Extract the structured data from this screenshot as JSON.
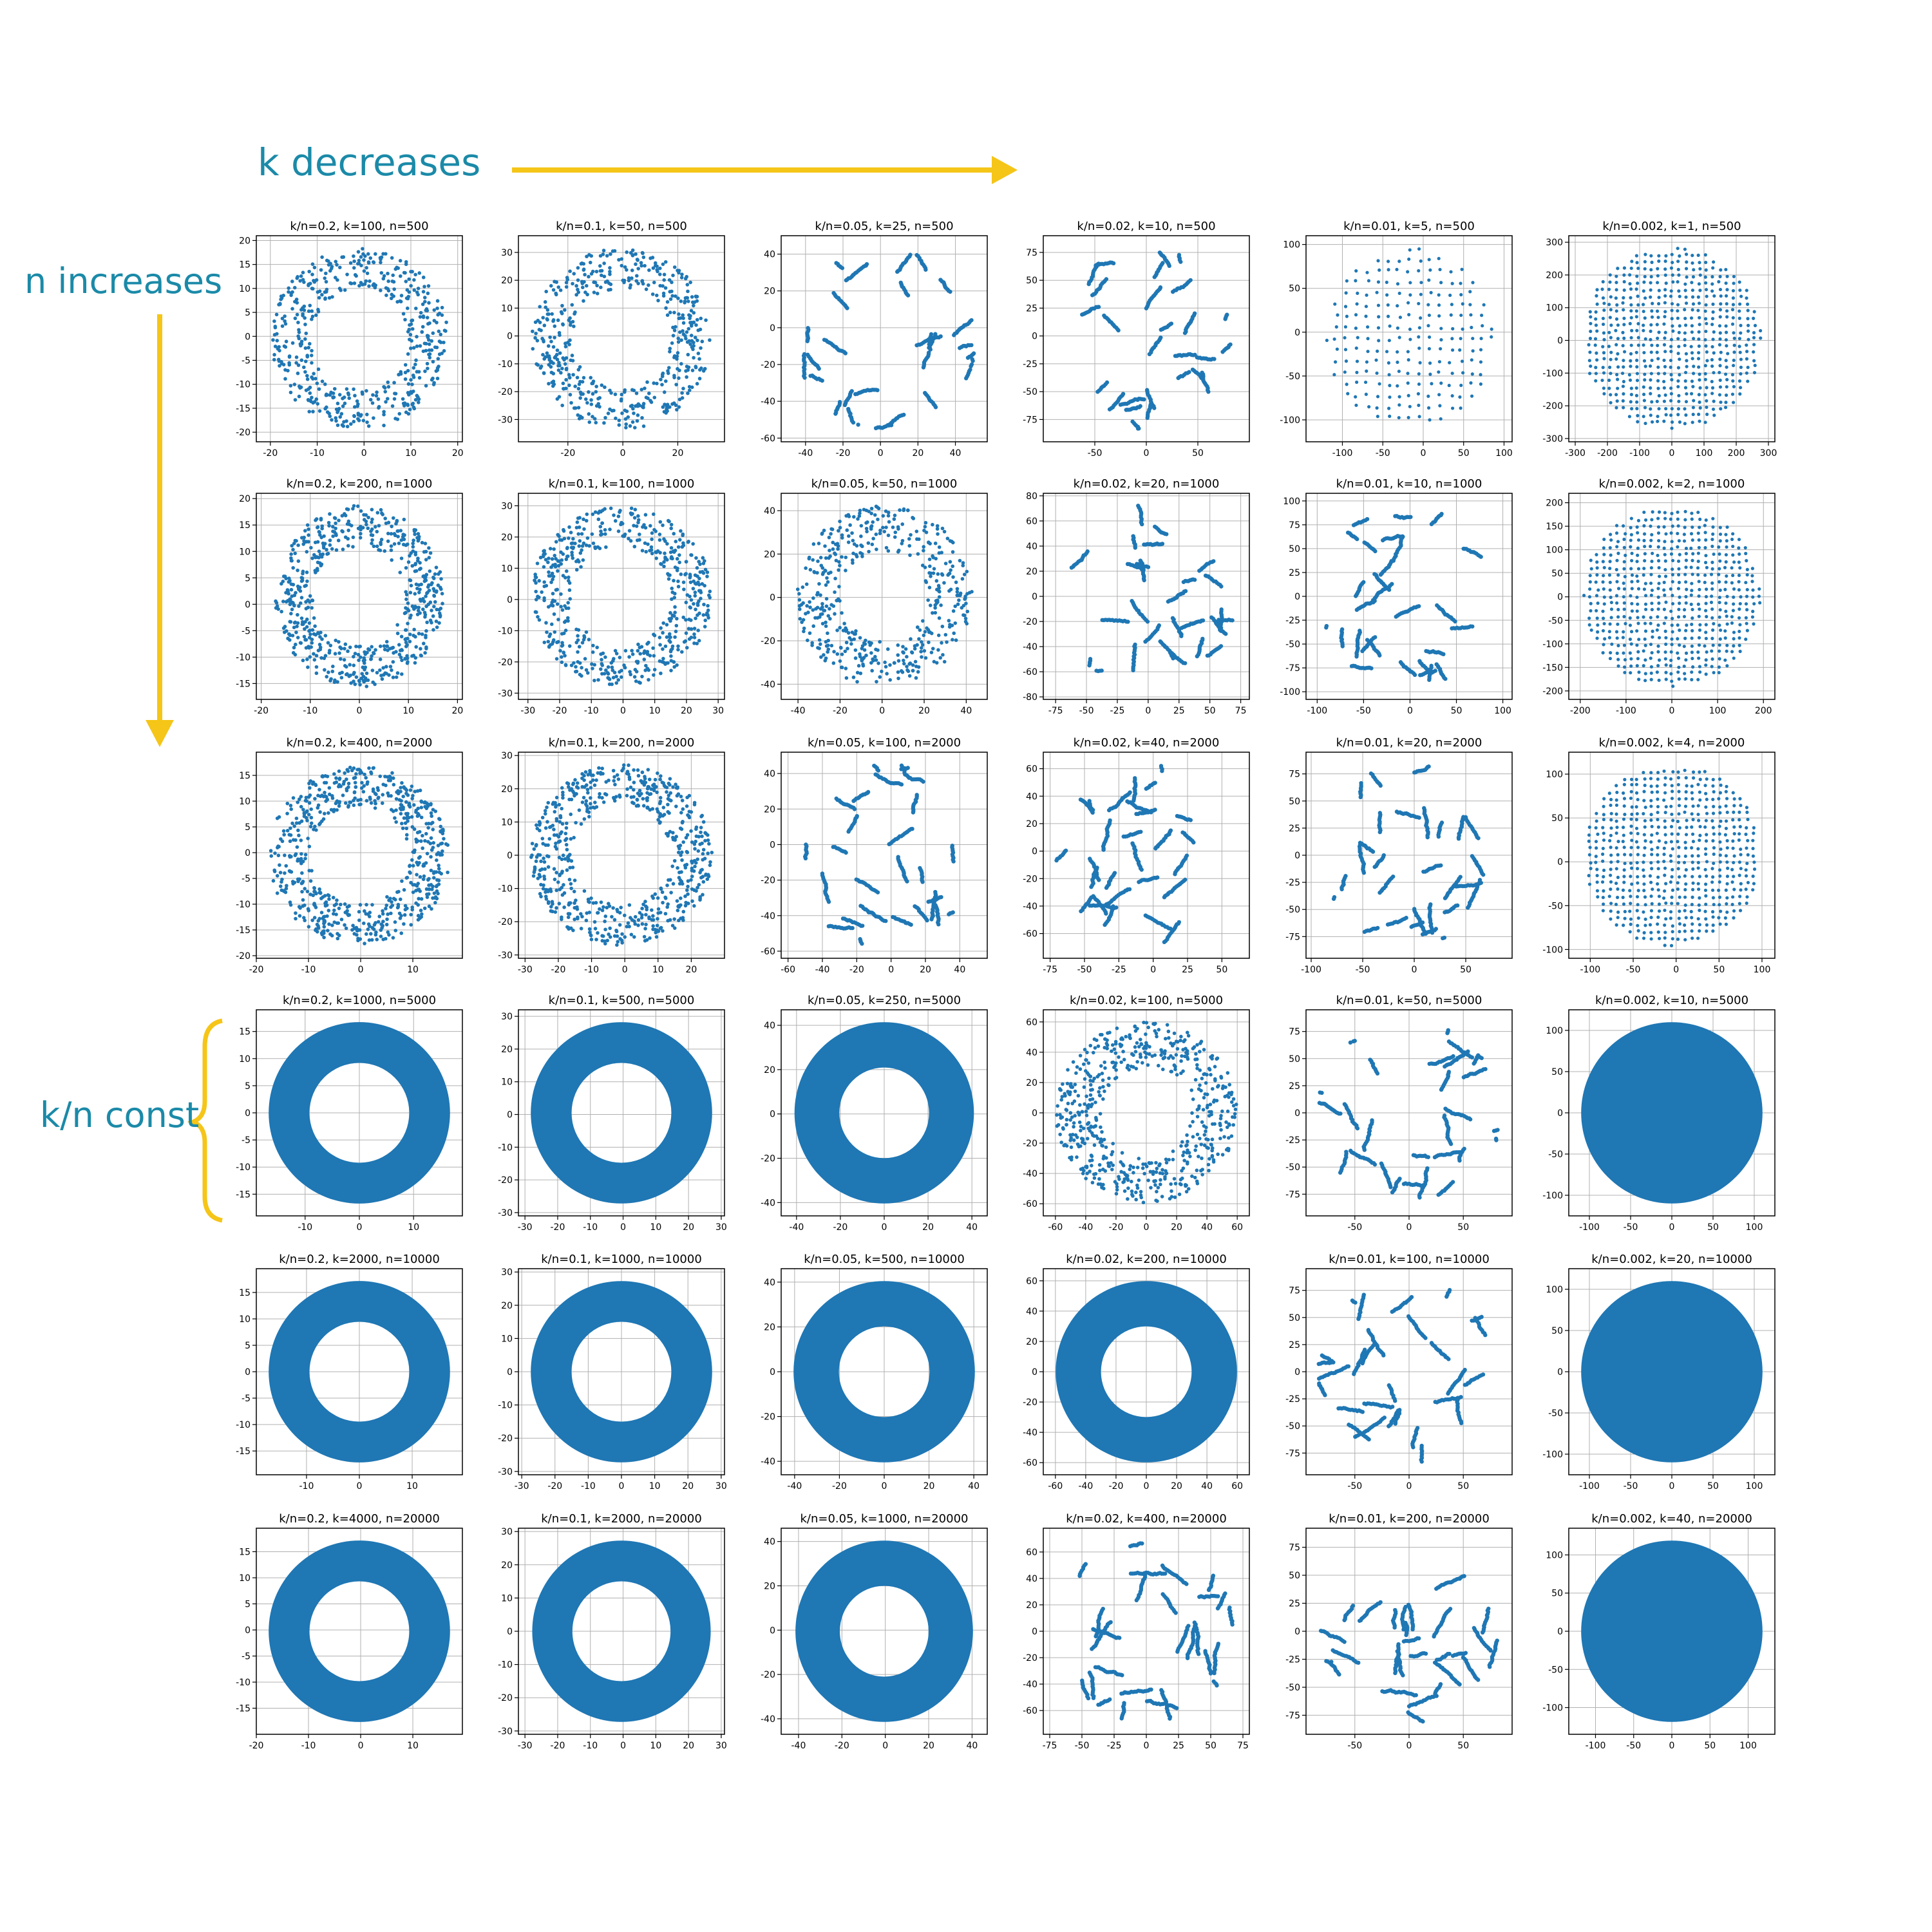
{
  "annotations": {
    "k_decreases": "k decreases",
    "n_increases": "n increases",
    "kn_const": "k/n const",
    "arrow_color": "#f5c518",
    "text_color": "#1b8aa8"
  },
  "point_color": "#1f77b4",
  "chart_data": [
    {
      "type": "scatter",
      "title": "k/n=0.2,  k=100, n=500",
      "shape": "ring",
      "rin": 0.55,
      "fill": 0.5,
      "xticks": [
        -20,
        -10,
        0,
        10,
        20
      ],
      "yticks": [
        -20,
        -15,
        -10,
        -5,
        0,
        5,
        10,
        15,
        20
      ],
      "xlim": [
        -23,
        21
      ],
      "ylim": [
        -22,
        21
      ]
    },
    {
      "type": "scatter",
      "title": "k/n=0.1,  k=50, n=500",
      "shape": "ring",
      "rin": 0.55,
      "fill": 0.5,
      "xticks": [
        -20,
        0,
        20
      ],
      "yticks": [
        -30,
        -20,
        -10,
        0,
        10,
        20,
        30
      ],
      "xlim": [
        -38,
        37
      ],
      "ylim": [
        -38,
        36
      ]
    },
    {
      "type": "scatter",
      "title": "k/n=0.05,  k=25, n=500",
      "shape": "clusters",
      "rin": 0.4,
      "fill": 0.35,
      "xticks": [
        -40,
        -20,
        0,
        20,
        40
      ],
      "yticks": [
        -60,
        -40,
        -20,
        0,
        20,
        40
      ],
      "xlim": [
        -53,
        57
      ],
      "ylim": [
        -62,
        50
      ]
    },
    {
      "type": "scatter",
      "title": "k/n=0.02,  k=10, n=500",
      "shape": "clusters",
      "rin": 0.0,
      "fill": 0.35,
      "xticks": [
        -50,
        0,
        50
      ],
      "yticks": [
        -75,
        -50,
        -25,
        0,
        25,
        50,
        75
      ],
      "xlim": [
        -100,
        100
      ],
      "ylim": [
        -95,
        90
      ]
    },
    {
      "type": "scatter",
      "title": "k/n=0.01,  k=5, n=500",
      "shape": "grid",
      "rin": 0.0,
      "fill": 0.8,
      "xticks": [
        -100,
        -50,
        0,
        50,
        100
      ],
      "yticks": [
        -100,
        -50,
        0,
        50,
        100
      ],
      "xlim": [
        -145,
        110
      ],
      "ylim": [
        -125,
        110
      ]
    },
    {
      "type": "scatter",
      "title": "k/n=0.002,  k=1, n=500",
      "shape": "grid",
      "rin": 0.0,
      "fill": 1.0,
      "xticks": [
        -300,
        -200,
        -100,
        0,
        100,
        200,
        300
      ],
      "yticks": [
        -300,
        -200,
        -100,
        0,
        100,
        200,
        300
      ],
      "xlim": [
        -320,
        320
      ],
      "ylim": [
        -310,
        320
      ]
    },
    {
      "type": "scatter",
      "title": "k/n=0.2,  k=200, n=1000",
      "shape": "ring",
      "rin": 0.55,
      "fill": 0.7,
      "xticks": [
        -20,
        -10,
        0,
        10,
        20
      ],
      "yticks": [
        -15,
        -10,
        -5,
        0,
        5,
        10,
        15,
        20
      ],
      "xlim": [
        -21,
        21
      ],
      "ylim": [
        -18,
        21
      ]
    },
    {
      "type": "scatter",
      "title": "k/n=0.1,  k=100, n=1000",
      "shape": "ring",
      "rin": 0.55,
      "fill": 0.6,
      "xticks": [
        -30,
        -20,
        -10,
        0,
        10,
        20,
        30
      ],
      "yticks": [
        -30,
        -20,
        -10,
        0,
        10,
        20,
        30
      ],
      "xlim": [
        -33,
        32
      ],
      "ylim": [
        -32,
        34
      ]
    },
    {
      "type": "scatter",
      "title": "k/n=0.05,  k=50, n=1000",
      "shape": "ring",
      "rin": 0.5,
      "fill": 0.45,
      "xticks": [
        -40,
        -20,
        0,
        20,
        40
      ],
      "yticks": [
        -40,
        -20,
        0,
        20,
        40
      ],
      "xlim": [
        -48,
        50
      ],
      "ylim": [
        -47,
        48
      ]
    },
    {
      "type": "scatter",
      "title": "k/n=0.02,  k=20, n=1000",
      "shape": "clusters",
      "rin": 0.0,
      "fill": 0.4,
      "xticks": [
        -75,
        -50,
        -25,
        0,
        25,
        50,
        75
      ],
      "yticks": [
        -80,
        -60,
        -40,
        -20,
        0,
        20,
        40,
        60,
        80
      ],
      "xlim": [
        -85,
        82
      ],
      "ylim": [
        -82,
        82
      ]
    },
    {
      "type": "scatter",
      "title": "k/n=0.01,  k=10, n=1000",
      "shape": "clusters",
      "rin": 0.0,
      "fill": 0.45,
      "xticks": [
        -100,
        -50,
        0,
        50,
        100
      ],
      "yticks": [
        -100,
        -75,
        -50,
        -25,
        0,
        25,
        50,
        75,
        100
      ],
      "xlim": [
        -112,
        110
      ],
      "ylim": [
        -108,
        108
      ]
    },
    {
      "type": "scatter",
      "title": "k/n=0.002,  k=2, n=1000",
      "shape": "grid",
      "rin": 0.0,
      "fill": 1.0,
      "xticks": [
        -200,
        -100,
        0,
        100,
        200
      ],
      "yticks": [
        -200,
        -150,
        -100,
        -50,
        0,
        50,
        100,
        150,
        200
      ],
      "xlim": [
        -225,
        225
      ],
      "ylim": [
        -218,
        220
      ]
    },
    {
      "type": "scatter",
      "title": "k/n=0.2,  k=400, n=2000",
      "shape": "ring",
      "rin": 0.55,
      "fill": 0.8,
      "xticks": [
        -20,
        -10,
        0,
        10
      ],
      "yticks": [
        -20,
        -15,
        -10,
        -5,
        0,
        5,
        10,
        15
      ],
      "xlim": [
        -20,
        19.5
      ],
      "ylim": [
        -20.5,
        19.5
      ]
    },
    {
      "type": "scatter",
      "title": "k/n=0.1,  k=200, n=2000",
      "shape": "ring",
      "rin": 0.55,
      "fill": 0.75,
      "xticks": [
        -30,
        -20,
        -10,
        0,
        10,
        20
      ],
      "yticks": [
        -30,
        -20,
        -10,
        0,
        10,
        20,
        30
      ],
      "xlim": [
        -32,
        30
      ],
      "ylim": [
        -31,
        31
      ]
    },
    {
      "type": "scatter",
      "title": "k/n=0.05,  k=100, n=2000",
      "shape": "clusters",
      "rin": 0.3,
      "fill": 0.6,
      "xticks": [
        -60,
        -40,
        -20,
        0,
        20,
        40
      ],
      "yticks": [
        -60,
        -40,
        -20,
        0,
        20,
        40
      ],
      "xlim": [
        -64,
        56
      ],
      "ylim": [
        -64,
        52
      ]
    },
    {
      "type": "scatter",
      "title": "k/n=0.02,  k=40, n=2000",
      "shape": "clusters",
      "rin": 0.0,
      "fill": 0.55,
      "xticks": [
        -75,
        -50,
        -25,
        0,
        25,
        50
      ],
      "yticks": [
        -60,
        -40,
        -20,
        0,
        20,
        40,
        60
      ],
      "xlim": [
        -80,
        70
      ],
      "ylim": [
        -78,
        72
      ]
    },
    {
      "type": "scatter",
      "title": "k/n=0.01,  k=20, n=2000",
      "shape": "clusters",
      "rin": 0.0,
      "fill": 0.55,
      "xticks": [
        -100,
        -50,
        0,
        50
      ],
      "yticks": [
        -75,
        -50,
        -25,
        0,
        25,
        50,
        75
      ],
      "xlim": [
        -105,
        95
      ],
      "ylim": [
        -95,
        95
      ]
    },
    {
      "type": "scatter",
      "title": "k/n=0.002,  k=4, n=2000",
      "shape": "grid",
      "rin": 0.0,
      "fill": 1.0,
      "xticks": [
        -100,
        -50,
        0,
        50,
        100
      ],
      "yticks": [
        -100,
        -50,
        0,
        50,
        100
      ],
      "xlim": [
        -125,
        115
      ],
      "ylim": [
        -110,
        125
      ]
    },
    {
      "type": "scatter",
      "title": "k/n=0.2,  k=1000, n=5000",
      "shape": "ring",
      "rin": 0.55,
      "fill": 0.95,
      "xticks": [
        -10,
        0,
        10
      ],
      "yticks": [
        -15,
        -10,
        -5,
        0,
        5,
        10,
        15
      ],
      "xlim": [
        -19,
        19
      ],
      "ylim": [
        -19,
        19
      ]
    },
    {
      "type": "scatter",
      "title": "k/n=0.1,  k=500, n=5000",
      "shape": "ring",
      "rin": 0.55,
      "fill": 0.9,
      "xticks": [
        -30,
        -20,
        -10,
        0,
        10,
        20,
        30
      ],
      "yticks": [
        -30,
        -20,
        -10,
        0,
        10,
        20,
        30
      ],
      "xlim": [
        -32,
        31
      ],
      "ylim": [
        -31,
        32
      ]
    },
    {
      "type": "scatter",
      "title": "k/n=0.05,  k=250, n=5000",
      "shape": "ring",
      "rin": 0.5,
      "fill": 0.85,
      "xticks": [
        -40,
        -20,
        0,
        20,
        40
      ],
      "yticks": [
        -40,
        -20,
        0,
        20,
        40
      ],
      "xlim": [
        -47,
        47
      ],
      "ylim": [
        -46,
        47
      ]
    },
    {
      "type": "scatter",
      "title": "k/n=0.02,  k=100, n=5000",
      "shape": "ring",
      "rin": 0.5,
      "fill": 0.7,
      "xticks": [
        -60,
        -40,
        -20,
        0,
        20,
        40,
        60
      ],
      "yticks": [
        -60,
        -40,
        -20,
        0,
        20,
        40,
        60
      ],
      "xlim": [
        -68,
        68
      ],
      "ylim": [
        -68,
        68
      ]
    },
    {
      "type": "scatter",
      "title": "k/n=0.01,  k=50, n=5000",
      "shape": "clusters",
      "rin": 0.3,
      "fill": 0.6,
      "xticks": [
        -50,
        0,
        50
      ],
      "yticks": [
        -75,
        -50,
        -25,
        0,
        25,
        50,
        75
      ],
      "xlim": [
        -95,
        95
      ],
      "ylim": [
        -95,
        95
      ]
    },
    {
      "type": "scatter",
      "title": "k/n=0.002,  k=10, n=5000",
      "shape": "disk",
      "rin": 0.0,
      "fill": 0.95,
      "xticks": [
        -100,
        -50,
        0,
        50,
        100
      ],
      "yticks": [
        -100,
        -50,
        0,
        50,
        100
      ],
      "xlim": [
        -125,
        125
      ],
      "ylim": [
        -125,
        125
      ]
    },
    {
      "type": "scatter",
      "title": "k/n=0.2,  k=2000, n=10000",
      "shape": "ring",
      "rin": 0.55,
      "fill": 1.0,
      "xticks": [
        -10,
        0,
        10
      ],
      "yticks": [
        -15,
        -10,
        -5,
        0,
        5,
        10,
        15
      ],
      "xlim": [
        -19.5,
        19.5
      ],
      "ylim": [
        -19.5,
        19.5
      ]
    },
    {
      "type": "scatter",
      "title": "k/n=0.1,  k=1000, n=10000",
      "shape": "ring",
      "rin": 0.55,
      "fill": 1.0,
      "xticks": [
        -30,
        -20,
        -10,
        0,
        10,
        20,
        30
      ],
      "yticks": [
        -30,
        -20,
        -10,
        0,
        10,
        20,
        30
      ],
      "xlim": [
        -31,
        31
      ],
      "ylim": [
        -31,
        31
      ]
    },
    {
      "type": "scatter",
      "title": "k/n=0.05,  k=500, n=10000",
      "shape": "ring",
      "rin": 0.5,
      "fill": 0.97,
      "xticks": [
        -40,
        -20,
        0,
        20,
        40
      ],
      "yticks": [
        -40,
        -20,
        0,
        20,
        40
      ],
      "xlim": [
        -46,
        46
      ],
      "ylim": [
        -46,
        46
      ]
    },
    {
      "type": "scatter",
      "title": "k/n=0.02,  k=200, n=10000",
      "shape": "ring",
      "rin": 0.5,
      "fill": 0.85,
      "xticks": [
        -60,
        -40,
        -20,
        0,
        20,
        40,
        60
      ],
      "yticks": [
        -60,
        -40,
        -20,
        0,
        20,
        40,
        60
      ],
      "xlim": [
        -68,
        68
      ],
      "ylim": [
        -68,
        68
      ]
    },
    {
      "type": "scatter",
      "title": "k/n=0.01,  k=100, n=10000",
      "shape": "clusters",
      "rin": 0.3,
      "fill": 0.75,
      "xticks": [
        -50,
        0,
        50
      ],
      "yticks": [
        -75,
        -50,
        -25,
        0,
        25,
        50,
        75
      ],
      "xlim": [
        -95,
        95
      ],
      "ylim": [
        -95,
        95
      ]
    },
    {
      "type": "scatter",
      "title": "k/n=0.002,  k=20, n=10000",
      "shape": "disk",
      "rin": 0.0,
      "fill": 0.95,
      "xticks": [
        -100,
        -50,
        0,
        50,
        100
      ],
      "yticks": [
        -100,
        -50,
        0,
        50,
        100
      ],
      "xlim": [
        -125,
        125
      ],
      "ylim": [
        -125,
        125
      ]
    },
    {
      "type": "scatter",
      "title": "k/n=0.2,  k=4000, n=20000",
      "shape": "ring",
      "rin": 0.55,
      "fill": 1.0,
      "xticks": [
        -20,
        -10,
        0,
        10
      ],
      "yticks": [
        -15,
        -10,
        -5,
        0,
        5,
        10,
        15
      ],
      "xlim": [
        -20,
        19.5
      ],
      "ylim": [
        -20,
        19.5
      ]
    },
    {
      "type": "scatter",
      "title": "k/n=0.1,  k=2000, n=20000",
      "shape": "ring",
      "rin": 0.55,
      "fill": 1.0,
      "xticks": [
        -30,
        -20,
        -10,
        0,
        10,
        20,
        30
      ],
      "yticks": [
        -30,
        -20,
        -10,
        0,
        10,
        20,
        30
      ],
      "xlim": [
        -32,
        31
      ],
      "ylim": [
        -31,
        31
      ]
    },
    {
      "type": "scatter",
      "title": "k/n=0.05,  k=1000, n=20000",
      "shape": "ring",
      "rin": 0.5,
      "fill": 1.0,
      "xticks": [
        -40,
        -20,
        0,
        20,
        40
      ],
      "yticks": [
        -40,
        -20,
        0,
        20,
        40
      ],
      "xlim": [
        -48,
        47
      ],
      "ylim": [
        -47,
        46
      ]
    },
    {
      "type": "scatter",
      "title": "k/n=0.02,  k=400, n=20000",
      "shape": "clusters",
      "rin": 0.3,
      "fill": 0.9,
      "xticks": [
        -75,
        -50,
        -25,
        0,
        25,
        50,
        75
      ],
      "yticks": [
        -60,
        -40,
        -20,
        0,
        20,
        40,
        60
      ],
      "xlim": [
        -80,
        80
      ],
      "ylim": [
        -78,
        78
      ]
    },
    {
      "type": "scatter",
      "title": "k/n=0.01,  k=200, n=20000",
      "shape": "clusters",
      "rin": 0.0,
      "fill": 0.85,
      "xticks": [
        -50,
        0,
        50
      ],
      "yticks": [
        -75,
        -50,
        -25,
        0,
        25,
        50,
        75
      ],
      "xlim": [
        -95,
        95
      ],
      "ylim": [
        -92,
        92
      ]
    },
    {
      "type": "scatter",
      "title": "k/n=0.002,  k=40, n=20000",
      "shape": "disk",
      "rin": 0.0,
      "fill": 0.95,
      "xticks": [
        -100,
        -50,
        0,
        50,
        100
      ],
      "yticks": [
        -100,
        -50,
        0,
        50,
        100
      ],
      "xlim": [
        -135,
        135
      ],
      "ylim": [
        -135,
        135
      ]
    }
  ]
}
